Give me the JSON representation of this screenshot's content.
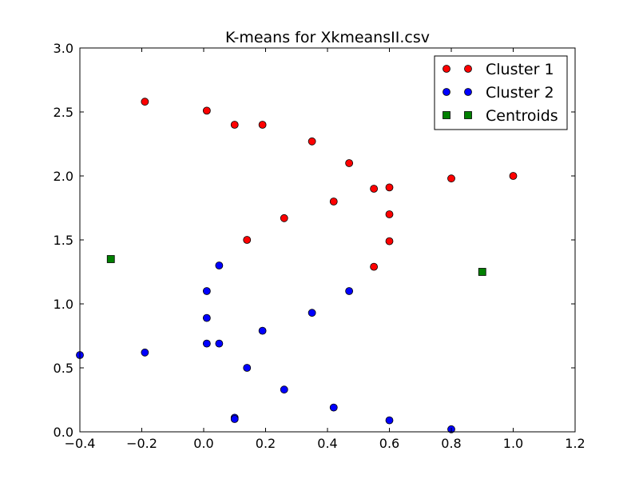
{
  "chart_data": {
    "type": "scatter",
    "title": "K-means for XkmeansII.csv",
    "xlabel": "",
    "ylabel": "",
    "xlim": [
      -0.4,
      1.2
    ],
    "ylim": [
      0.0,
      3.0
    ],
    "xticks": [
      -0.4,
      -0.2,
      0.0,
      0.2,
      0.4,
      0.6,
      0.8,
      1.0,
      1.2
    ],
    "xtick_labels": [
      "−0.4",
      "−0.2",
      "0.0",
      "0.2",
      "0.4",
      "0.6",
      "0.8",
      "1.0",
      "1.2"
    ],
    "yticks": [
      0.0,
      0.5,
      1.0,
      1.5,
      2.0,
      2.5,
      3.0
    ],
    "ytick_labels": [
      "0.0",
      "0.5",
      "1.0",
      "1.5",
      "2.0",
      "2.5",
      "3.0"
    ],
    "grid": false,
    "legend_position": "top-right",
    "series": [
      {
        "name": "Cluster 1",
        "color": "#ff0000",
        "marker": "circle",
        "x": [
          -0.19,
          0.01,
          0.1,
          0.19,
          0.35,
          0.47,
          0.55,
          0.6,
          0.8,
          1.0,
          0.42,
          0.6,
          0.26,
          0.6,
          0.14,
          0.55
        ],
        "y": [
          2.58,
          2.51,
          2.4,
          2.4,
          2.27,
          2.1,
          1.9,
          1.91,
          1.98,
          2.0,
          1.8,
          1.7,
          1.67,
          1.49,
          1.5,
          1.29
        ]
      },
      {
        "name": "Cluster 2",
        "color": "#0000ff",
        "marker": "circle",
        "x": [
          0.05,
          0.01,
          0.47,
          0.35,
          0.01,
          0.19,
          0.01,
          0.05,
          -0.4,
          -0.19,
          0.14,
          0.26,
          0.42,
          0.1,
          0.1,
          0.6,
          0.8
        ],
        "y": [
          1.3,
          1.1,
          1.1,
          0.93,
          0.89,
          0.79,
          0.69,
          0.69,
          0.6,
          0.62,
          0.5,
          0.33,
          0.19,
          0.11,
          0.1,
          0.09,
          0.02
        ]
      },
      {
        "name": "Centroids",
        "color": "#008000",
        "marker": "square",
        "x": [
          -0.3,
          0.9
        ],
        "y": [
          1.35,
          1.25
        ]
      }
    ]
  }
}
